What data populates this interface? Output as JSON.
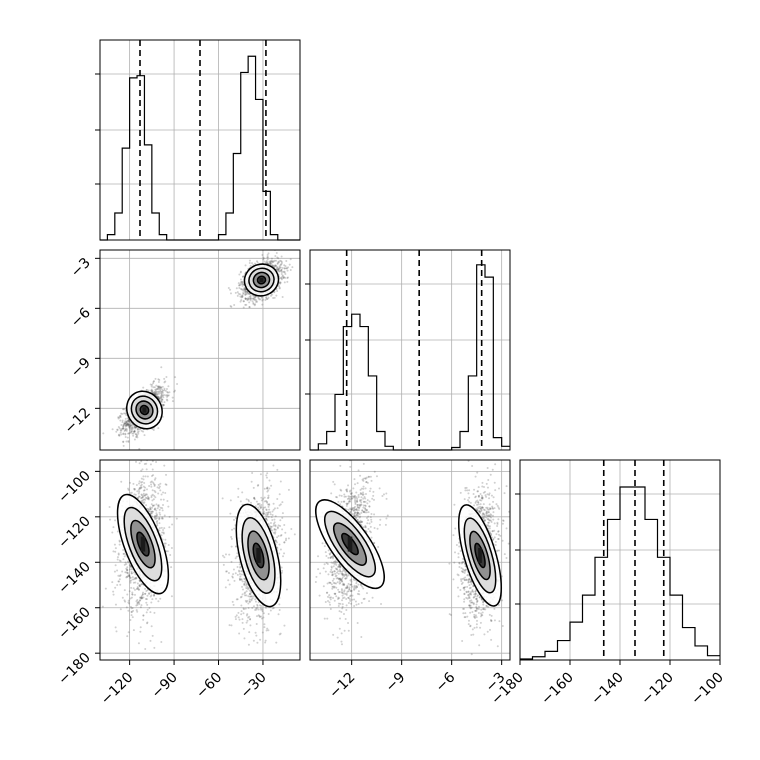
{
  "chart_data": {
    "type": "corner",
    "grid": true,
    "colors": {
      "line": "#000000",
      "grid": "#b0b0b0",
      "scatter": "#555555",
      "fill_dark": "#1a1a1a"
    },
    "params": [
      {
        "ticks": [
          -120,
          -90,
          -60,
          -30
        ],
        "tick_labels": [
          "−120",
          "−90",
          "−60",
          "−30"
        ],
        "range": [
          -140,
          -5
        ]
      },
      {
        "ticks": [
          -12,
          -9,
          -6,
          -3
        ],
        "tick_labels": [
          "−12",
          "−9",
          "−6",
          "−3"
        ],
        "range": [
          -14.5,
          -2.5
        ]
      },
      {
        "ticks": [
          -180,
          -160,
          -140,
          -120,
          -100
        ],
        "tick_labels": [
          "−180",
          "−160",
          "−140",
          "−120",
          "−100"
        ],
        "range": [
          -183,
          -95
        ]
      }
    ],
    "histograms": [
      {
        "param": 0,
        "bins": [
          -140,
          -135,
          -130,
          -125,
          -120,
          -115,
          -110,
          -105,
          -100,
          -95,
          -90,
          -85,
          -80,
          -75,
          -70,
          -65,
          -60,
          -55,
          -50,
          -45,
          -40,
          -35,
          -30,
          -25,
          -20,
          -15,
          -10,
          -5
        ],
        "counts": [
          0,
          0.5,
          2.5,
          8.5,
          15,
          15.2,
          8.8,
          2.5,
          0.5,
          0,
          0,
          0,
          0,
          0,
          0,
          0,
          0.5,
          2.5,
          8,
          15.5,
          17,
          13,
          4.5,
          0.5,
          0,
          0,
          0
        ],
        "ymax": 18.5,
        "quantiles": [
          -113,
          -72.5,
          -28
        ]
      },
      {
        "param": 1,
        "bins": [
          -14.5,
          -14,
          -13.5,
          -13,
          -12.5,
          -12,
          -11.5,
          -11,
          -10.5,
          -10,
          -9.5,
          -9,
          -8.5,
          -8,
          -7.5,
          -7,
          -6.5,
          -6,
          -5.5,
          -5,
          -4.5,
          -4,
          -3.5,
          -3,
          -2.5
        ],
        "counts": [
          0,
          0.5,
          1.5,
          4.5,
          10,
          11,
          10,
          6,
          1.5,
          0.3,
          0,
          0,
          0,
          0,
          0,
          0,
          0,
          0.2,
          1.5,
          6,
          15,
          14,
          1,
          0.3
        ],
        "ymax": 16.2,
        "quantiles": [
          -12.3,
          -7.95,
          -4.2
        ]
      },
      {
        "param": 2,
        "bins": [
          -180,
          -175,
          -170,
          -165,
          -160,
          -155,
          -150,
          -145,
          -140,
          -135,
          -130,
          -125,
          -120,
          -115,
          -110,
          -105,
          -100
        ],
        "counts": [
          0.1,
          0.3,
          0.8,
          1.8,
          3.5,
          6,
          9.5,
          13,
          16,
          16,
          13,
          9.5,
          6,
          3,
          1.3,
          0.4
        ],
        "ymax": 18.5,
        "quantiles": [
          -146.5,
          -134,
          -122.5
        ]
      }
    ],
    "pairs": [
      {
        "x_param": 0,
        "y_param": 1,
        "clusters": [
          {
            "center": [
              -110,
              -12.1
            ],
            "spread": [
              5.5,
              0.55
            ],
            "corr": 0.6,
            "n": 1300
          },
          {
            "center": [
              -31,
              -4.3
            ],
            "spread": [
              5.5,
              0.45
            ],
            "corr": 0.4,
            "n": 1300
          }
        ]
      },
      {
        "x_param": 0,
        "y_param": 2,
        "clusters": [
          {
            "center": [
              -111,
              -132
            ],
            "spread": [
              6,
              11
            ],
            "corr": 0.15,
            "n": 1300
          },
          {
            "center": [
              -33,
              -137
            ],
            "spread": [
              6,
              11
            ],
            "corr": 0.1,
            "n": 1300
          }
        ]
      },
      {
        "x_param": 1,
        "y_param": 2,
        "clusters": [
          {
            "center": [
              -12.1,
              -132
            ],
            "spread": [
              0.55,
              11
            ],
            "corr": 0.3,
            "n": 1300
          },
          {
            "center": [
              -4.3,
              -137
            ],
            "spread": [
              0.45,
              11
            ],
            "corr": 0.1,
            "n": 1300
          }
        ]
      }
    ]
  }
}
